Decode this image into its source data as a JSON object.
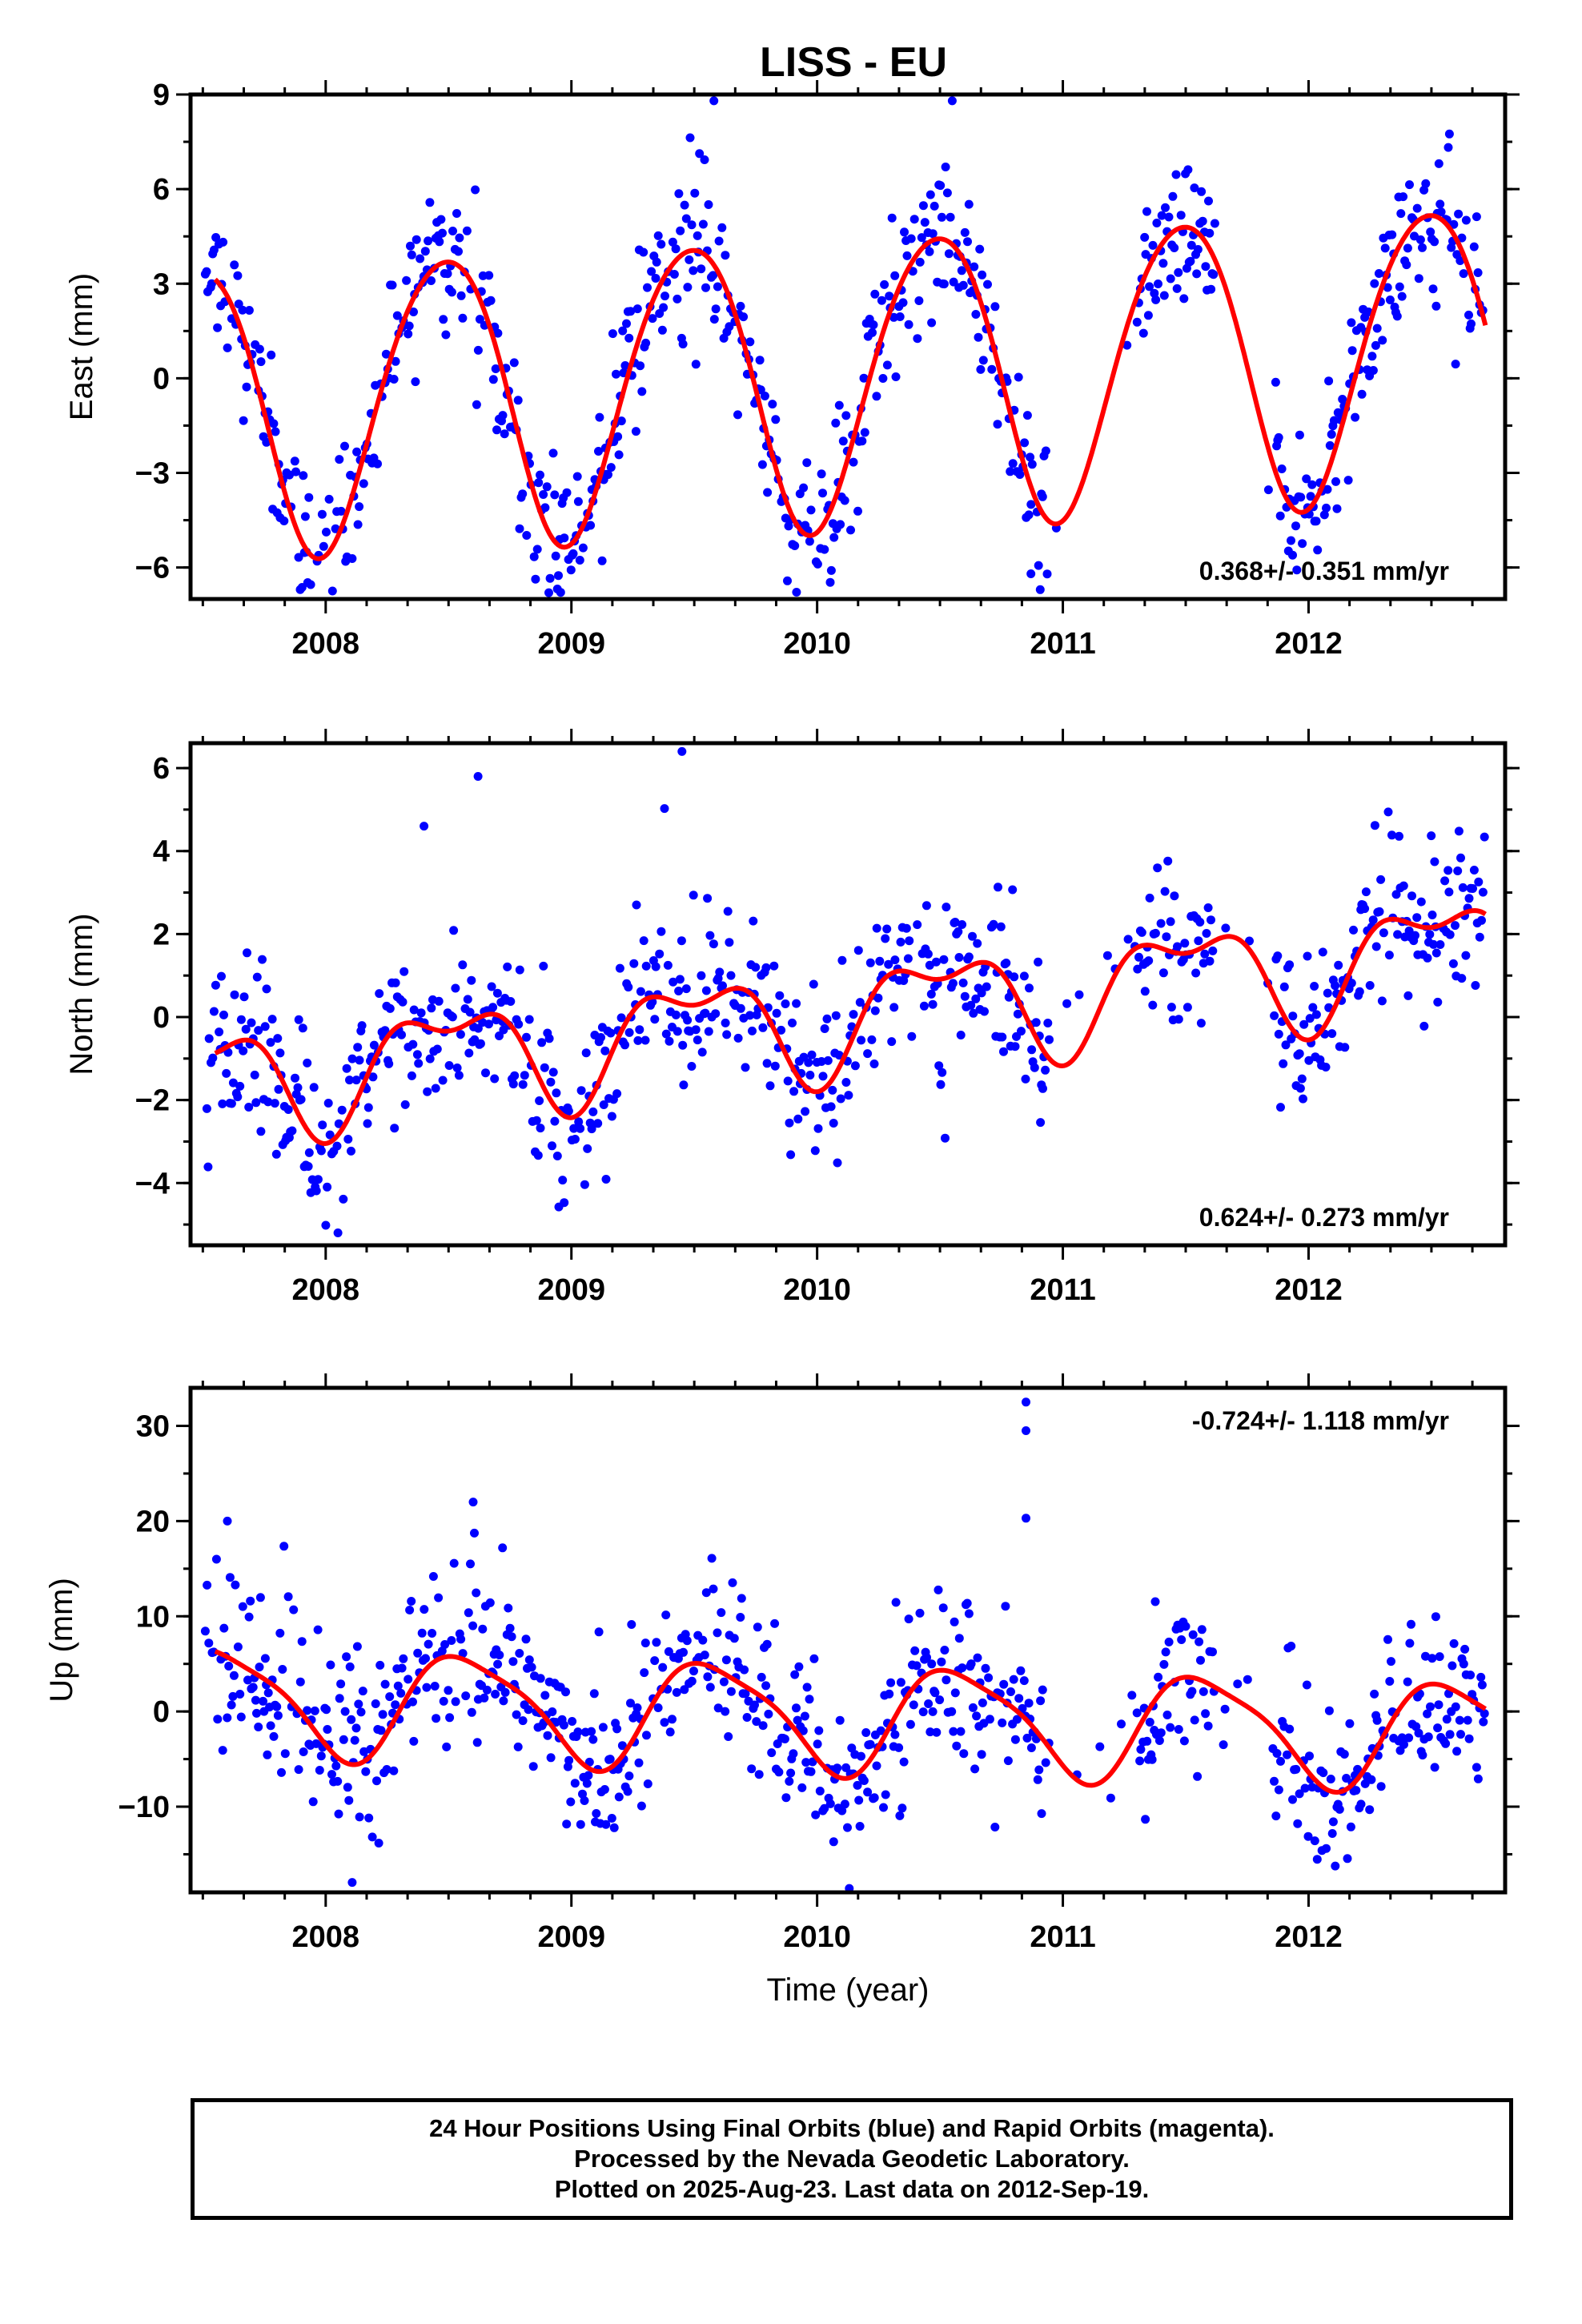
{
  "figure": {
    "title": "LISS - EU"
  },
  "colors": {
    "final_orbits": "#0000ff",
    "model_fit": "#ff0000",
    "frame": "#000000"
  },
  "chart_data": [
    {
      "type": "scatter",
      "name": "east",
      "ylabel": "East (mm)",
      "xlabel": "",
      "xlim": [
        2007.45,
        2012.8
      ],
      "ylim": [
        -7,
        9
      ],
      "yticks": [
        -6,
        -3,
        0,
        3,
        6,
        9
      ],
      "xticks": [
        2008,
        2009,
        2010,
        2011,
        2012
      ],
      "rate": "0.368+/- 0.351 mm/yr",
      "rate_position": "bottom-right",
      "model": {
        "mean": 0,
        "trend": 0.368,
        "t0": 2010,
        "annual_amp": 4.6,
        "annual_peak": 2008.48,
        "semiannual_amp": 0.4,
        "semiannual_peak": 2008.2,
        "noise": 1.3
      },
      "gaps": [
        [
          2010.95,
          2011.3
        ],
        [
          2011.62,
          2011.86
        ]
      ],
      "outliers": [
        [
          2010.87,
          -6.2
        ],
        [
          2009.58,
          8.8
        ],
        [
          2010.55,
          8.8
        ]
      ]
    },
    {
      "type": "scatter",
      "name": "north",
      "ylabel": "North (mm)",
      "xlabel": "",
      "xlim": [
        2007.45,
        2012.8
      ],
      "ylim": [
        -5.5,
        6.6
      ],
      "yticks": [
        -4,
        -2,
        0,
        2,
        4,
        6
      ],
      "xticks": [
        2008,
        2009,
        2010,
        2011,
        2012
      ],
      "rate": "0.624+/- 0.273 mm/yr",
      "rate_position": "bottom-right",
      "model": {
        "mean": 0,
        "trend": 0.624,
        "t0": 2010,
        "annual_amp": 1.2,
        "annual_peak": 2008.5,
        "semiannual_amp": 0.6,
        "semiannual_peak": 2008.25,
        "noise": 1.0
      },
      "gaps": [
        [
          2010.95,
          2011.3
        ],
        [
          2011.62,
          2011.86
        ]
      ],
      "outliers": [
        [
          2008.62,
          5.8
        ],
        [
          2009.45,
          6.4
        ],
        [
          2008.4,
          4.6
        ],
        [
          2008.05,
          -5.2
        ]
      ]
    },
    {
      "type": "scatter",
      "name": "up",
      "ylabel": "Up (mm)",
      "xlabel": "Time (year)",
      "xlim": [
        2007.45,
        2012.8
      ],
      "ylim": [
        -19,
        34
      ],
      "yticks": [
        -10,
        0,
        10,
        20,
        30
      ],
      "xticks": [
        2008,
        2009,
        2010,
        2011,
        2012
      ],
      "rate": "-0.724+/- 1.118 mm/yr",
      "rate_position": "top-right",
      "model": {
        "mean": -0.5,
        "trend": -0.724,
        "t0": 2010,
        "annual_amp": 5.5,
        "annual_peak": 2008.58,
        "semiannual_amp": 1.2,
        "semiannual_peak": 2008.4,
        "noise": 4.5
      },
      "gaps": [
        [
          2010.95,
          2011.3
        ],
        [
          2011.62,
          2011.86
        ]
      ],
      "outliers": [
        [
          2010.85,
          32.5
        ],
        [
          2010.85,
          29.5
        ],
        [
          2010.85,
          20.3
        ],
        [
          2008.6,
          22
        ],
        [
          2007.6,
          20
        ]
      ]
    }
  ],
  "footer": {
    "line1": "24 Hour Positions Using Final Orbits (blue) and Rapid Orbits (magenta).",
    "line2": "Processed by the Nevada Geodetic Laboratory.",
    "line3": "Plotted on 2025-Aug-23. Last data on 2012-Sep-19."
  }
}
